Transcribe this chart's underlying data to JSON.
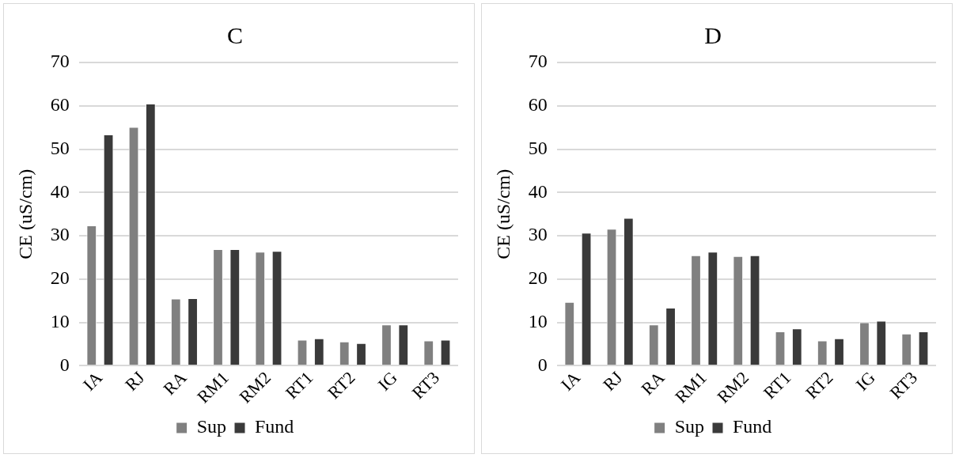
{
  "chart_data": [
    {
      "type": "bar",
      "title": "C",
      "ylabel": "CE (uS/cm)",
      "categories": [
        "IA",
        "RJ",
        "RA",
        "RM1",
        "RM2",
        "RT1",
        "RT2",
        "IG",
        "RT3"
      ],
      "series": [
        {
          "name": "Sup",
          "color": "#808080",
          "values": [
            32.4,
            55.1,
            15.5,
            26.9,
            26.3,
            6.0,
            5.6,
            9.5,
            5.8
          ]
        },
        {
          "name": "Fund",
          "color": "#3a3a3a",
          "values": [
            53.4,
            60.5,
            15.6,
            26.9,
            26.5,
            6.3,
            5.2,
            9.5,
            6.0
          ]
        }
      ],
      "ylim": [
        0,
        70
      ],
      "yticks": [
        0,
        10,
        20,
        30,
        40,
        50,
        60,
        70
      ],
      "grid": "y",
      "legend": "bottom"
    },
    {
      "type": "bar",
      "title": "D",
      "ylabel": "CE (uS/cm)",
      "categories": [
        "IA",
        "RJ",
        "RA",
        "RM1",
        "RM2",
        "RT1",
        "RT2",
        "IG",
        "RT3"
      ],
      "series": [
        {
          "name": "Sup",
          "color": "#808080",
          "values": [
            14.7,
            31.6,
            9.5,
            25.5,
            25.3,
            7.9,
            5.8,
            10.0,
            7.4
          ]
        },
        {
          "name": "Fund",
          "color": "#3a3a3a",
          "values": [
            30.7,
            34.1,
            13.4,
            26.3,
            25.5,
            8.6,
            6.3,
            10.4,
            7.9
          ]
        }
      ],
      "ylim": [
        0,
        70
      ],
      "yticks": [
        0,
        10,
        20,
        30,
        40,
        50,
        60,
        70
      ],
      "grid": "y",
      "legend": "bottom"
    }
  ]
}
